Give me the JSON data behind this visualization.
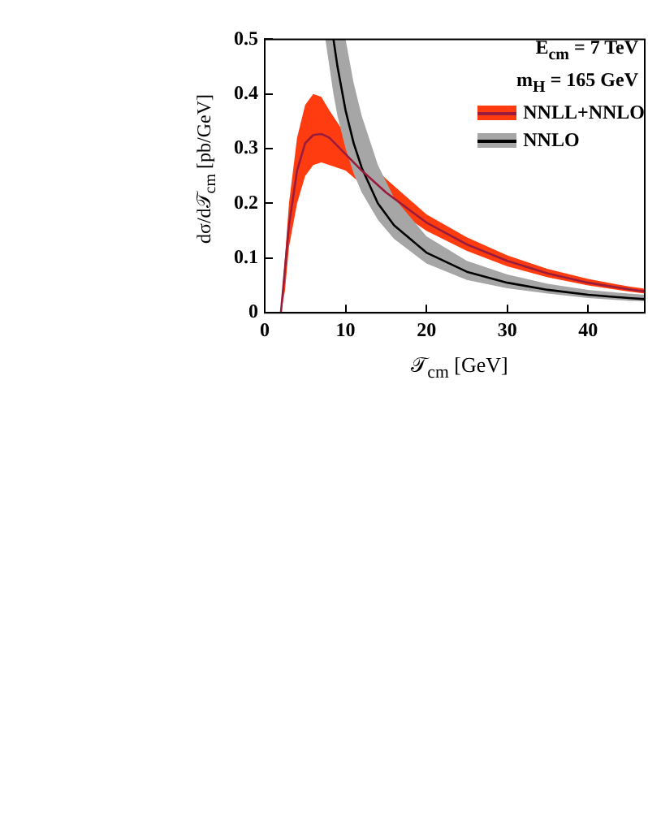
{
  "chart_data": {
    "type": "line",
    "xlabel": "𝒯$_{cm}$ [GeV]",
    "ylabel": "dσ/d𝒯$_{cm}$ [pb/GeV]",
    "annotations": [
      "E$_{cm}$ = 7 TeV",
      "m$_{H}$ = 165 GeV"
    ],
    "xlim": [
      0,
      47
    ],
    "xticks": [
      0,
      10,
      20,
      30,
      40
    ],
    "ylim": [
      0,
      0.5
    ],
    "yticks": [
      0,
      0.1,
      0.2,
      0.3,
      0.4,
      0.5
    ],
    "legend": "top right",
    "grid": false,
    "marker": "none",
    "line_style": "solid",
    "series": [
      {
        "name": "NNLL+NNLO",
        "color": "#9a1c3c",
        "x": [
          2,
          2.5,
          3,
          4,
          5,
          6,
          7,
          8,
          10,
          12,
          15,
          20,
          25,
          30,
          35,
          40,
          45,
          47
        ],
        "values": [
          0,
          0.08,
          0.16,
          0.26,
          0.31,
          0.325,
          0.327,
          0.32,
          0.29,
          0.26,
          0.22,
          0.165,
          0.125,
          0.095,
          0.072,
          0.055,
          0.043,
          0.039
        ],
        "lower": [
          0,
          0.04,
          0.12,
          0.2,
          0.25,
          0.27,
          0.275,
          0.27,
          0.26,
          0.235,
          0.2,
          0.15,
          0.113,
          0.085,
          0.065,
          0.05,
          0.039,
          0.035
        ],
        "upper": [
          0,
          0.1,
          0.2,
          0.32,
          0.38,
          0.4,
          0.395,
          0.37,
          0.325,
          0.29,
          0.245,
          0.18,
          0.138,
          0.105,
          0.08,
          0.062,
          0.048,
          0.044
        ]
      },
      {
        "name": "NNLO",
        "color": "#000000",
        "x": [
          7.5,
          8,
          8.5,
          9,
          10,
          11,
          12,
          14,
          16,
          20,
          25,
          30,
          35,
          40,
          45,
          47
        ],
        "values": [
          null,
          null,
          0.5,
          0.45,
          0.37,
          0.31,
          0.265,
          0.2,
          0.16,
          0.11,
          0.075,
          0.055,
          0.042,
          0.033,
          0.027,
          0.025
        ],
        "lower": [
          0.5,
          0.45,
          0.4,
          0.36,
          0.3,
          0.255,
          0.22,
          0.17,
          0.135,
          0.09,
          0.06,
          0.045,
          0.035,
          0.027,
          0.022,
          0.021
        ],
        "upper": [
          0.5,
          0.5,
          0.5,
          0.5,
          0.5,
          0.42,
          0.36,
          0.27,
          0.21,
          0.14,
          0.095,
          0.07,
          0.053,
          0.042,
          0.035,
          0.033
        ]
      }
    ]
  }
}
